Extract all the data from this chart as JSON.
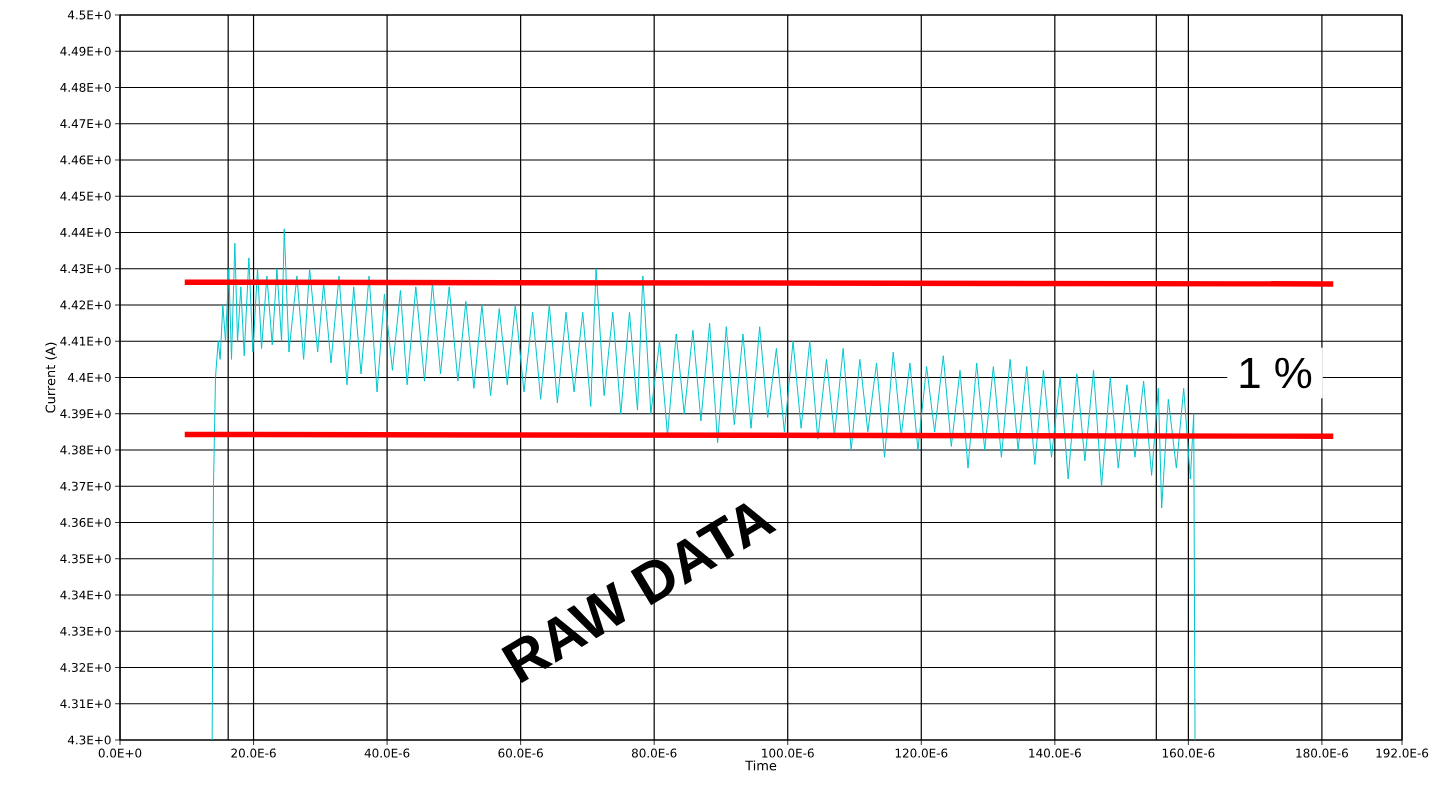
{
  "chart_data": {
    "type": "line",
    "xlabel": "Time",
    "ylabel": "Current (A)",
    "xlim": [
      0,
      0.000192
    ],
    "ylim": [
      4.3,
      4.5
    ],
    "xticks": [
      {
        "value": 0,
        "label": "0.0E+0"
      },
      {
        "value": 2e-05,
        "label": "20.0E-6"
      },
      {
        "value": 4e-05,
        "label": "40.0E-6"
      },
      {
        "value": 6e-05,
        "label": "60.0E-6"
      },
      {
        "value": 8e-05,
        "label": "80.0E-6"
      },
      {
        "value": 0.0001,
        "label": "100.0E-6"
      },
      {
        "value": 0.00012,
        "label": "120.0E-6"
      },
      {
        "value": 0.00014,
        "label": "140.0E-6"
      },
      {
        "value": 0.00016,
        "label": "160.0E-6"
      },
      {
        "value": 0.00018,
        "label": "180.0E-6"
      },
      {
        "value": 0.000192,
        "label": "192.0E-6"
      }
    ],
    "yticks": [
      {
        "value": 4.3,
        "label": "4.3E+0"
      },
      {
        "value": 4.31,
        "label": "4.31E+0"
      },
      {
        "value": 4.32,
        "label": "4.32E+0"
      },
      {
        "value": 4.33,
        "label": "4.33E+0"
      },
      {
        "value": 4.34,
        "label": "4.34E+0"
      },
      {
        "value": 4.35,
        "label": "4.35E+0"
      },
      {
        "value": 4.36,
        "label": "4.36E+0"
      },
      {
        "value": 4.37,
        "label": "4.37E+0"
      },
      {
        "value": 4.38,
        "label": "4.38E+0"
      },
      {
        "value": 4.39,
        "label": "4.39E+0"
      },
      {
        "value": 4.4,
        "label": "4.4E+0"
      },
      {
        "value": 4.41,
        "label": "4.41E+0"
      },
      {
        "value": 4.42,
        "label": "4.42E+0"
      },
      {
        "value": 4.43,
        "label": "4.43E+0"
      },
      {
        "value": 4.44,
        "label": "4.44E+0"
      },
      {
        "value": 4.45,
        "label": "4.45E+0"
      },
      {
        "value": 4.46,
        "label": "4.46E+0"
      },
      {
        "value": 4.47,
        "label": "4.47E+0"
      },
      {
        "value": 4.48,
        "label": "4.48E+0"
      },
      {
        "value": 4.49,
        "label": "4.49E+0"
      },
      {
        "value": 4.5,
        "label": "4.5E+0"
      }
    ],
    "grid": true,
    "series": [
      {
        "color": "#00c5cd",
        "x": [
          1.38e-05,
          1.4e-05,
          1.43e-05,
          1.47e-05,
          1.5e-05,
          1.54e-05,
          1.58e-05,
          1.63e-05,
          1.67e-05,
          1.72e-05,
          1.76e-05,
          1.81e-05,
          1.86e-05,
          1.93e-05,
          1.99e-05,
          2.06e-05,
          2.12e-05,
          2.2e-05,
          2.28e-05,
          2.35e-05,
          2.42e-05,
          2.46e-05,
          2.53e-05,
          2.65e-05,
          2.75e-05,
          2.84e-05,
          2.96e-05,
          3.05e-05,
          3.16e-05,
          3.28e-05,
          3.4e-05,
          3.5e-05,
          3.61e-05,
          3.73e-05,
          3.85e-05,
          3.96e-05,
          4.08e-05,
          4.2e-05,
          4.3e-05,
          4.43e-05,
          4.56e-05,
          4.68e-05,
          4.8e-05,
          4.93e-05,
          5.06e-05,
          5.18e-05,
          5.3e-05,
          5.42e-05,
          5.55e-05,
          5.68e-05,
          5.8e-05,
          5.92e-05,
          6.05e-05,
          6.18e-05,
          6.3e-05,
          6.43e-05,
          6.55e-05,
          6.68e-05,
          6.8e-05,
          6.93e-05,
          7.05e-05,
          7.13e-05,
          7.25e-05,
          7.38e-05,
          7.5e-05,
          7.63e-05,
          7.75e-05,
          7.83e-05,
          7.95e-05,
          8.08e-05,
          8.2e-05,
          8.33e-05,
          8.45e-05,
          8.58e-05,
          8.7e-05,
          8.83e-05,
          8.95e-05,
          9.08e-05,
          9.2e-05,
          9.33e-05,
          9.45e-05,
          9.58e-05,
          9.7e-05,
          9.83e-05,
          9.95e-05,
          0.0001008,
          0.000102,
          0.0001033,
          0.0001045,
          0.0001058,
          0.000107,
          0.0001083,
          0.0001095,
          0.0001108,
          0.000112,
          0.0001133,
          0.0001145,
          0.0001158,
          0.000117,
          0.0001183,
          0.0001195,
          0.0001208,
          0.000122,
          0.0001233,
          0.0001245,
          0.0001258,
          0.000127,
          0.0001283,
          0.0001295,
          0.0001308,
          0.000132,
          0.0001333,
          0.0001345,
          0.0001358,
          0.000137,
          0.0001383,
          0.0001395,
          0.0001408,
          0.000142,
          0.0001433,
          0.0001445,
          0.0001458,
          0.000147,
          0.0001483,
          0.0001495,
          0.0001508,
          0.000152,
          0.0001533,
          0.0001545,
          0.0001555,
          0.000156,
          0.000157,
          0.0001582,
          0.0001593,
          0.0001603,
          0.0001608,
          0.000161
        ],
        "values": [
          4.3,
          4.37,
          4.4,
          4.41,
          4.405,
          4.42,
          4.41,
          4.43,
          4.405,
          4.437,
          4.41,
          4.425,
          4.406,
          4.433,
          4.407,
          4.43,
          4.408,
          4.428,
          4.409,
          4.43,
          4.41,
          4.441,
          4.407,
          4.428,
          4.405,
          4.43,
          4.407,
          4.426,
          4.404,
          4.428,
          4.398,
          4.425,
          4.401,
          4.428,
          4.396,
          4.423,
          4.402,
          4.424,
          4.398,
          4.425,
          4.399,
          4.426,
          4.401,
          4.425,
          4.399,
          4.421,
          4.397,
          4.42,
          4.395,
          4.419,
          4.398,
          4.42,
          4.396,
          4.418,
          4.394,
          4.42,
          4.393,
          4.418,
          4.396,
          4.418,
          4.392,
          4.43,
          4.395,
          4.418,
          4.39,
          4.418,
          4.391,
          4.428,
          4.39,
          4.41,
          4.384,
          4.412,
          4.39,
          4.413,
          4.388,
          4.415,
          4.382,
          4.414,
          4.387,
          4.412,
          4.386,
          4.414,
          4.389,
          4.408,
          4.385,
          4.41,
          4.386,
          4.41,
          4.383,
          4.405,
          4.384,
          4.408,
          4.38,
          4.405,
          4.385,
          4.404,
          4.378,
          4.407,
          4.384,
          4.404,
          4.38,
          4.403,
          4.385,
          4.406,
          4.381,
          4.402,
          4.375,
          4.404,
          4.38,
          4.403,
          4.378,
          4.405,
          4.38,
          4.403,
          4.376,
          4.402,
          4.378,
          4.4,
          4.372,
          4.401,
          4.377,
          4.402,
          4.37,
          4.4,
          4.375,
          4.398,
          4.378,
          4.399,
          4.373,
          4.397,
          4.364,
          4.394,
          4.375,
          4.397,
          4.372,
          4.39,
          4.3
        ]
      },
      {
        "color": "#ff0000",
        "x": [
          9.7e-06,
          0.0001817
        ],
        "values": [
          4.4263,
          4.4258
        ]
      },
      {
        "color": "#ff0000",
        "x": [
          9.7e-06,
          0.0001817
        ],
        "values": [
          4.3843,
          4.3838
        ]
      }
    ],
    "ref_lines": [
      {
        "axis": "x",
        "value": 1.62e-05,
        "color": "#000000"
      },
      {
        "axis": "x",
        "value": 0.0001552,
        "color": "#000000"
      }
    ],
    "annotations": [
      "1 %",
      "RAW DATA"
    ]
  }
}
